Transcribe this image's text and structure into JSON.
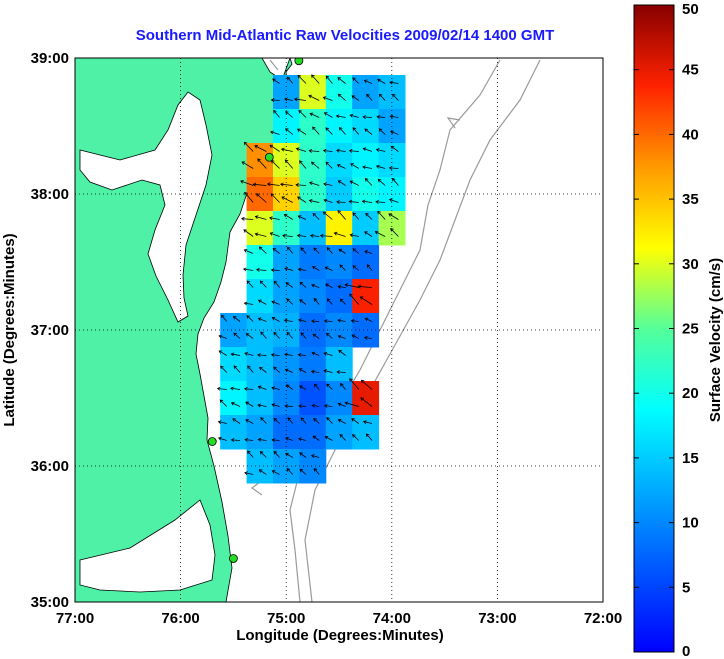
{
  "chart_data": {
    "type": "heatmap",
    "title": "Southern Mid-Atlantic Raw Velocities 2009/02/14 1400 GMT",
    "xlabel": "Longitude (Degrees:Minutes)",
    "ylabel": "Latitude (Degrees:Minutes)",
    "xlim": [
      -77,
      -72
    ],
    "ylim": [
      35,
      39
    ],
    "x_ticks": [
      {
        "value": -77,
        "label": "77:00"
      },
      {
        "value": -76,
        "label": "76:00"
      },
      {
        "value": -75,
        "label": "75:00"
      },
      {
        "value": -74,
        "label": "74:00"
      },
      {
        "value": -73,
        "label": "73:00"
      },
      {
        "value": -72,
        "label": "72:00"
      }
    ],
    "y_ticks": [
      {
        "value": 35,
        "label": "35:00"
      },
      {
        "value": 36,
        "label": "36:00"
      },
      {
        "value": 37,
        "label": "37:00"
      },
      {
        "value": 38,
        "label": "38:00"
      },
      {
        "value": 39,
        "label": "39:00"
      }
    ],
    "grid": true,
    "colorbar": {
      "label": "Surface Velocity (cm/s)",
      "min": 0,
      "max": 50,
      "ticks": [
        0,
        5,
        10,
        15,
        20,
        25,
        30,
        35,
        40,
        45,
        50
      ],
      "colormap": "jet"
    },
    "stations": [
      {
        "lon": -74.88,
        "lat": 38.98
      },
      {
        "lon": -75.16,
        "lat": 38.27
      },
      {
        "lon": -75.7,
        "lat": 36.18
      },
      {
        "lon": -75.5,
        "lat": 35.32
      }
    ],
    "velocity_field": {
      "units": "cm/s",
      "lon": [
        -75.5,
        -75.25,
        -75.0,
        -74.75,
        -74.5,
        -74.25,
        -74.0
      ],
      "lat": [
        38.75,
        38.5,
        38.25,
        38.0,
        37.75,
        37.5,
        37.25,
        37.0,
        36.75,
        36.5,
        36.25,
        36.0
      ],
      "speed": [
        [
          null,
          null,
          12,
          30,
          20,
          12,
          14
        ],
        [
          null,
          null,
          18,
          22,
          18,
          16,
          12
        ],
        [
          null,
          38,
          30,
          22,
          16,
          18,
          16
        ],
        [
          null,
          40,
          34,
          22,
          15,
          20,
          18
        ],
        [
          null,
          30,
          22,
          14,
          32,
          15,
          28
        ],
        [
          null,
          20,
          12,
          9,
          10,
          8,
          null
        ],
        [
          null,
          16,
          12,
          10,
          8,
          44,
          null
        ],
        [
          12,
          14,
          13,
          8,
          10,
          8,
          null
        ],
        [
          16,
          14,
          11,
          9,
          14,
          null,
          null
        ],
        [
          18,
          14,
          10,
          6,
          10,
          45,
          null
        ],
        [
          14,
          12,
          8,
          8,
          12,
          14,
          null
        ],
        [
          null,
          14,
          12,
          10,
          null,
          null,
          null
        ]
      ]
    }
  },
  "colors": {
    "title": "#1a1aff",
    "land": "#4ef1a6",
    "station": "#22dd22",
    "grid": "#000000"
  }
}
